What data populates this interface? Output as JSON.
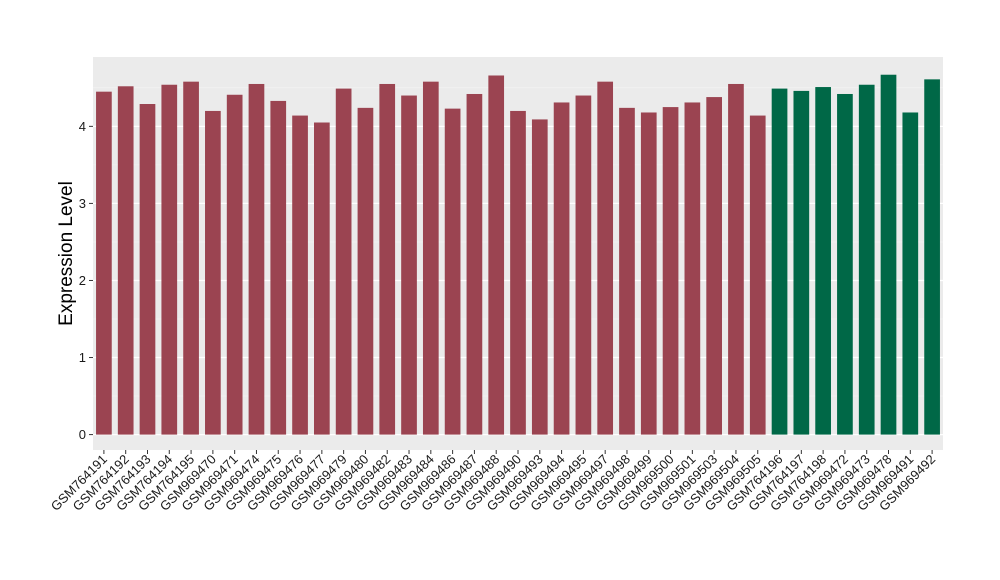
{
  "chart_data": {
    "type": "bar",
    "ylabel": "Expression Level",
    "xlabel": "",
    "ylim": [
      -0.2,
      4.9
    ],
    "yticks": [
      0,
      1,
      2,
      3,
      4
    ],
    "grid": true,
    "background": "#ebebeb",
    "colors": {
      "group_a": "#9b4451",
      "group_b": "#006847"
    },
    "categories": [
      "GSM764191",
      "GSM764192",
      "GSM764193",
      "GSM764194",
      "GSM764195",
      "GSM969470",
      "GSM969471",
      "GSM969474",
      "GSM969475",
      "GSM969476",
      "GSM969477",
      "GSM969479",
      "GSM969480",
      "GSM969482",
      "GSM969483",
      "GSM969484",
      "GSM969486",
      "GSM969487",
      "GSM969488",
      "GSM969490",
      "GSM969493",
      "GSM969494",
      "GSM969495",
      "GSM969497",
      "GSM969498",
      "GSM969499",
      "GSM969500",
      "GSM969501",
      "GSM969503",
      "GSM969504",
      "GSM969505",
      "GSM764196",
      "GSM764197",
      "GSM764198",
      "GSM969472",
      "GSM969473",
      "GSM969478",
      "GSM969491",
      "GSM969492"
    ],
    "values": [
      4.45,
      4.52,
      4.29,
      4.54,
      4.58,
      4.2,
      4.41,
      4.55,
      4.33,
      4.14,
      4.05,
      4.49,
      4.24,
      4.55,
      4.4,
      4.58,
      4.23,
      4.42,
      4.66,
      4.2,
      4.09,
      4.31,
      4.4,
      4.58,
      4.24,
      4.18,
      4.25,
      4.31,
      4.38,
      4.55,
      4.14,
      4.49,
      4.46,
      4.51,
      4.42,
      4.54,
      4.67,
      4.18,
      4.61
    ],
    "groups": [
      "a",
      "a",
      "a",
      "a",
      "a",
      "a",
      "a",
      "a",
      "a",
      "a",
      "a",
      "a",
      "a",
      "a",
      "a",
      "a",
      "a",
      "a",
      "a",
      "a",
      "a",
      "a",
      "a",
      "a",
      "a",
      "a",
      "a",
      "a",
      "a",
      "a",
      "a",
      "b",
      "b",
      "b",
      "b",
      "b",
      "b",
      "b",
      "b"
    ]
  }
}
